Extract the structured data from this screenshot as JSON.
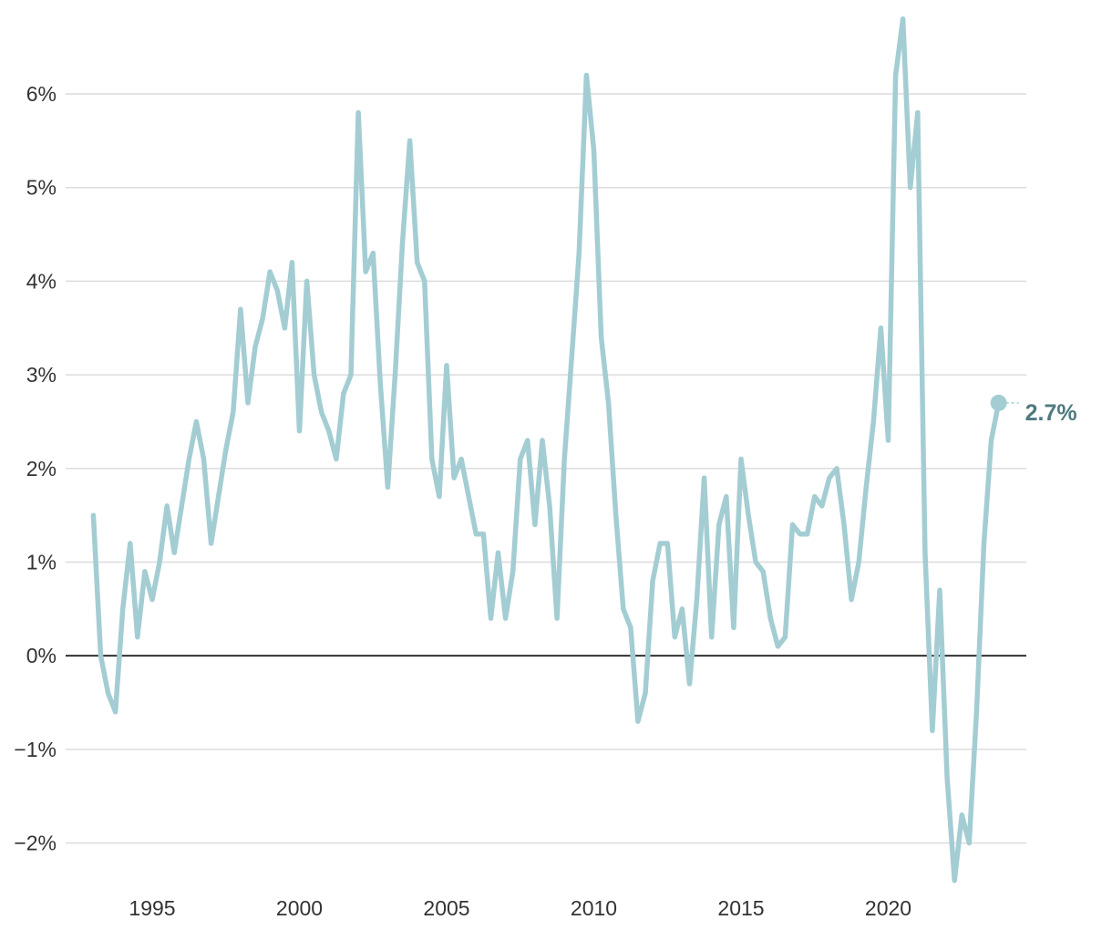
{
  "chart_data": {
    "type": "line",
    "title": "",
    "xlabel": "",
    "ylabel": "",
    "xlim": [
      1992.5,
      2024.9
    ],
    "ylim": [
      -2.4,
      6.8
    ],
    "x_ticks": [
      1995,
      2000,
      2005,
      2010,
      2015,
      2020
    ],
    "x_tick_labels": [
      "1995",
      "2000",
      "2005",
      "2010",
      "2015",
      "2020"
    ],
    "y_ticks": [
      -2,
      -1,
      0,
      1,
      2,
      3,
      4,
      5,
      6
    ],
    "y_tick_labels": [
      "−2%",
      "−1%",
      "0%",
      "1%",
      "2%",
      "3%",
      "4%",
      "5%",
      "6%"
    ],
    "grid": true,
    "zero_line": true,
    "line_color": "#a3cdd3",
    "end_label": "2.7%",
    "end_label_color": "#4e7a80",
    "series": [
      {
        "x": [
          1993.0,
          1993.25,
          1993.5,
          1993.75,
          1994.0,
          1994.25,
          1994.5,
          1994.75,
          1995.0,
          1995.25,
          1995.5,
          1995.75,
          1996.0,
          1996.25,
          1996.5,
          1996.75,
          1997.0,
          1997.25,
          1997.5,
          1997.75,
          1998.0,
          1998.25,
          1998.5,
          1998.75,
          1999.0,
          1999.25,
          1999.5,
          1999.75,
          2000.0,
          2000.25,
          2000.5,
          2000.75,
          2001.0,
          2001.25,
          2001.5,
          2001.75,
          2002.0,
          2002.25,
          2002.5,
          2002.75,
          2003.0,
          2003.25,
          2003.5,
          2003.75,
          2004.0,
          2004.25,
          2004.5,
          2004.75,
          2005.0,
          2005.25,
          2005.5,
          2005.75,
          2006.0,
          2006.25,
          2006.5,
          2006.75,
          2007.0,
          2007.25,
          2007.5,
          2007.75,
          2008.0,
          2008.25,
          2008.5,
          2008.75,
          2009.0,
          2009.25,
          2009.5,
          2009.75,
          2010.0,
          2010.25,
          2010.5,
          2010.75,
          2011.0,
          2011.25,
          2011.5,
          2011.75,
          2012.0,
          2012.25,
          2012.5,
          2012.75,
          2013.0,
          2013.25,
          2013.5,
          2013.75,
          2014.0,
          2014.25,
          2014.5,
          2014.75,
          2015.0,
          2015.25,
          2015.5,
          2015.75,
          2016.0,
          2016.25,
          2016.5,
          2016.75,
          2017.0,
          2017.25,
          2017.5,
          2017.75,
          2018.0,
          2018.25,
          2018.5,
          2018.75,
          2019.0,
          2019.25,
          2019.5,
          2019.75,
          2020.0,
          2020.25,
          2020.5,
          2020.75,
          2021.0,
          2021.25,
          2021.5,
          2021.75,
          2022.0,
          2022.25,
          2022.5,
          2022.75,
          2023.0,
          2023.25,
          2023.5,
          2023.75
        ],
        "values": [
          1.5,
          0.0,
          -0.4,
          -0.6,
          0.5,
          1.2,
          0.2,
          0.9,
          0.6,
          1.0,
          1.6,
          1.1,
          1.6,
          2.1,
          2.5,
          2.1,
          1.2,
          1.7,
          2.2,
          2.6,
          3.7,
          2.7,
          3.3,
          3.6,
          4.1,
          3.9,
          3.5,
          4.2,
          2.4,
          4.0,
          3.0,
          2.6,
          2.4,
          2.1,
          2.8,
          3.0,
          5.8,
          4.1,
          4.3,
          2.9,
          1.8,
          3.0,
          4.4,
          5.5,
          4.2,
          4.0,
          2.1,
          1.7,
          3.1,
          1.9,
          2.1,
          1.7,
          1.3,
          1.3,
          0.4,
          1.1,
          0.4,
          0.9,
          2.1,
          2.3,
          1.4,
          2.3,
          1.6,
          0.4,
          2.1,
          3.2,
          4.3,
          6.2,
          5.4,
          3.4,
          2.7,
          1.5,
          0.5,
          0.3,
          -0.7,
          -0.4,
          0.8,
          1.2,
          1.2,
          0.2,
          0.5,
          -0.3,
          0.6,
          1.9,
          0.2,
          1.4,
          1.7,
          0.3,
          2.1,
          1.5,
          1.0,
          0.9,
          0.4,
          0.1,
          0.2,
          1.4,
          1.3,
          1.3,
          1.7,
          1.6,
          1.9,
          2.0,
          1.4,
          0.6,
          1.0,
          1.8,
          2.5,
          3.5,
          2.3,
          6.2,
          6.8,
          5.0,
          5.8,
          1.1,
          -0.8,
          0.7,
          -1.3,
          -2.4,
          -1.7,
          -2.0,
          -0.6,
          1.2,
          2.3,
          2.7
        ]
      }
    ]
  }
}
